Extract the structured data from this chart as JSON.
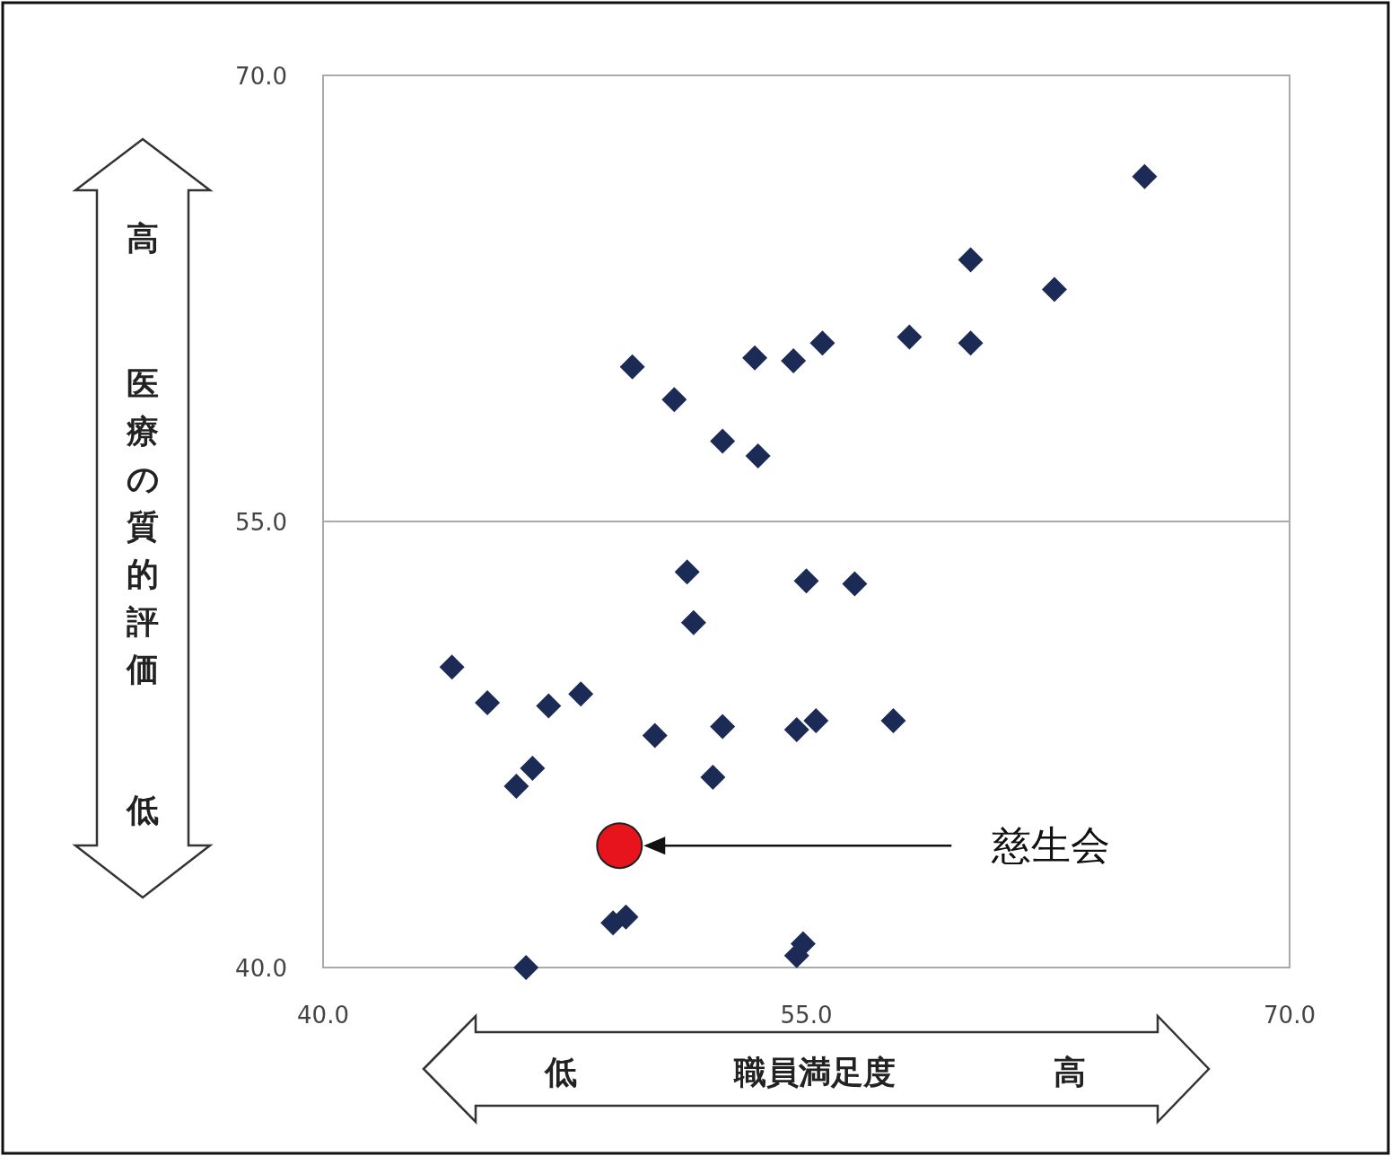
{
  "chart_data": {
    "type": "scatter",
    "xlabel": "職員満足度",
    "ylabel": "医療の質的評価",
    "xlim": [
      40,
      70
    ],
    "ylim": [
      40,
      70
    ],
    "xticks": [
      {
        "value": 40,
        "label": "40.0"
      },
      {
        "value": 55,
        "label": "55.0"
      },
      {
        "value": 70,
        "label": "70.0"
      }
    ],
    "yticks": [
      {
        "value": 40,
        "label": "40.0"
      },
      {
        "value": 55,
        "label": "55.0"
      },
      {
        "value": 70,
        "label": "70.0"
      }
    ],
    "grid": "y",
    "series": [
      {
        "color": "#1c2b55",
        "marker": "diamond",
        "x": [
          65.5,
          60.1,
          62.7,
          58.2,
          60.1,
          55.5,
          54.6,
          53.4,
          49.6,
          50.9,
          52.4,
          53.5,
          51.3,
          55.0,
          56.5,
          51.5,
          44.0,
          45.1,
          47.0,
          48.0,
          50.3,
          52.4,
          54.7,
          55.3,
          57.7,
          46.5,
          46.0,
          52.1,
          49.0,
          49.4,
          54.9,
          54.7,
          46.3
        ],
        "values": [
          66.6,
          63.8,
          62.8,
          61.2,
          61.0,
          61.0,
          60.4,
          60.5,
          60.2,
          59.1,
          57.7,
          57.2,
          53.3,
          53.0,
          52.9,
          51.6,
          50.1,
          48.9,
          48.8,
          49.2,
          47.8,
          48.1,
          48.0,
          48.3,
          48.3,
          46.7,
          46.1,
          46.4,
          41.5,
          41.7,
          40.8,
          40.4,
          40.0
        ]
      },
      {
        "color": "#e8141c",
        "marker": "circle",
        "x": [
          49.2
        ],
        "values": [
          44.1
        ]
      }
    ],
    "annotations": [
      "高",
      "低",
      "低",
      "高",
      "慈生会"
    ]
  }
}
